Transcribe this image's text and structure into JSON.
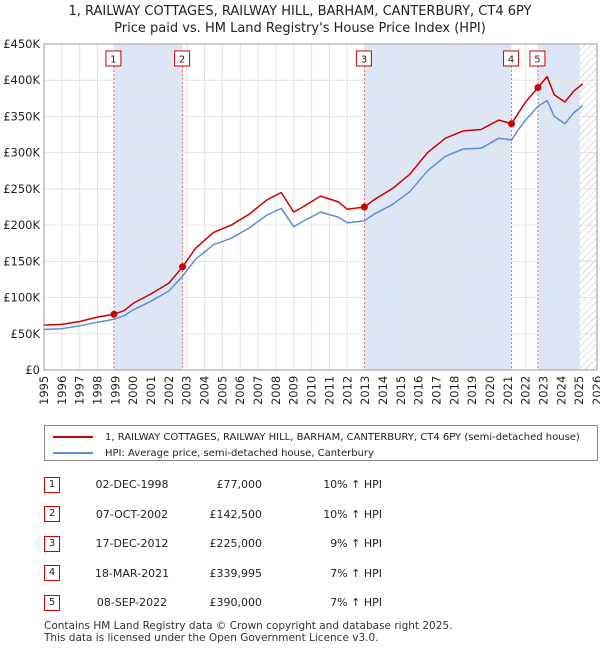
{
  "title_line1": "1, RAILWAY COTTAGES, RAILWAY HILL, BARHAM, CANTERBURY, CT4 6PY",
  "title_line2": "Price paid vs. HM Land Registry's House Price Index (HPI)",
  "colors": {
    "price_line": "#cc0000",
    "hpi_line": "#5b8fd4",
    "highlight": "#dde6f5",
    "grid": "#e3e3e3",
    "marker_dash": "#e07070"
  },
  "legend": {
    "price_label": "1, RAILWAY COTTAGES, RAILWAY HILL, BARHAM, CANTERBURY, CT4 6PY (semi-detached house)",
    "hpi_label": "HPI: Average price, semi-detached house, Canterbury"
  },
  "sales": [
    {
      "num": "1",
      "date": "02-DEC-1998",
      "price": "£77,000",
      "hpi": "10% ↑ HPI"
    },
    {
      "num": "2",
      "date": "07-OCT-2002",
      "price": "£142,500",
      "hpi": "10% ↑ HPI"
    },
    {
      "num": "3",
      "date": "17-DEC-2012",
      "price": "£225,000",
      "hpi": "9% ↑ HPI"
    },
    {
      "num": "4",
      "date": "18-MAR-2021",
      "price": "£339,995",
      "hpi": "7% ↑ HPI"
    },
    {
      "num": "5",
      "date": "08-SEP-2022",
      "price": "£390,000",
      "hpi": "7% ↑ HPI"
    }
  ],
  "footer_line1": "Contains HM Land Registry data © Crown copyright and database right 2025.",
  "footer_line2": "This data is licensed under the Open Government Licence v3.0.",
  "chart_data": {
    "type": "line",
    "x_range": [
      1995,
      2026
    ],
    "ylim": [
      0,
      450000
    ],
    "y_ticks": [
      0,
      50000,
      100000,
      150000,
      200000,
      250000,
      300000,
      350000,
      400000,
      450000
    ],
    "y_tick_labels": [
      "£0",
      "£50K",
      "£100K",
      "£150K",
      "£200K",
      "£250K",
      "£300K",
      "£350K",
      "£400K",
      "£450K"
    ],
    "x_ticks": [
      "1995",
      "1996",
      "1997",
      "1998",
      "1999",
      "2000",
      "2001",
      "2002",
      "2003",
      "2004",
      "2005",
      "2006",
      "2007",
      "2008",
      "2009",
      "2010",
      "2011",
      "2012",
      "2013",
      "2014",
      "2015",
      "2016",
      "2017",
      "2018",
      "2019",
      "2020",
      "2021",
      "2022",
      "2023",
      "2024",
      "2025",
      "2026"
    ],
    "future_hatch_from": 2025.0,
    "grid": true,
    "series": [
      {
        "name": "1, RAILWAY COTTAGES, RAILWAY HILL, BARHAM, CANTERBURY, CT4 6PY (semi-detached house)",
        "points": [
          [
            1995.0,
            62000
          ],
          [
            1996.0,
            63000
          ],
          [
            1997.0,
            67000
          ],
          [
            1998.0,
            73000
          ],
          [
            1998.92,
            77000
          ],
          [
            1999.5,
            82000
          ],
          [
            2000.0,
            92000
          ],
          [
            2001.0,
            105000
          ],
          [
            2002.0,
            120000
          ],
          [
            2002.77,
            142500
          ],
          [
            2003.5,
            168000
          ],
          [
            2004.5,
            190000
          ],
          [
            2005.5,
            200000
          ],
          [
            2006.5,
            215000
          ],
          [
            2007.5,
            235000
          ],
          [
            2008.3,
            245000
          ],
          [
            2009.0,
            218000
          ],
          [
            2009.5,
            225000
          ],
          [
            2010.5,
            240000
          ],
          [
            2011.5,
            232000
          ],
          [
            2012.0,
            222000
          ],
          [
            2012.96,
            225000
          ],
          [
            2013.5,
            235000
          ],
          [
            2014.5,
            250000
          ],
          [
            2015.5,
            270000
          ],
          [
            2016.5,
            300000
          ],
          [
            2017.5,
            320000
          ],
          [
            2018.5,
            330000
          ],
          [
            2019.5,
            332000
          ],
          [
            2020.5,
            345000
          ],
          [
            2021.21,
            339995
          ],
          [
            2021.6,
            355000
          ],
          [
            2022.0,
            370000
          ],
          [
            2022.69,
            390000
          ],
          [
            2023.2,
            405000
          ],
          [
            2023.6,
            380000
          ],
          [
            2024.2,
            370000
          ],
          [
            2024.7,
            385000
          ],
          [
            2025.2,
            395000
          ]
        ]
      },
      {
        "name": "HPI: Average price, semi-detached house, Canterbury",
        "points": [
          [
            1995.0,
            56000
          ],
          [
            1996.0,
            57000
          ],
          [
            1997.0,
            61000
          ],
          [
            1998.0,
            66000
          ],
          [
            1998.92,
            70000
          ],
          [
            1999.5,
            75000
          ],
          [
            2000.0,
            83000
          ],
          [
            2001.0,
            95000
          ],
          [
            2002.0,
            109000
          ],
          [
            2002.77,
            129500
          ],
          [
            2003.5,
            153000
          ],
          [
            2004.5,
            173000
          ],
          [
            2005.5,
            182000
          ],
          [
            2006.5,
            196000
          ],
          [
            2007.5,
            214000
          ],
          [
            2008.3,
            223000
          ],
          [
            2009.0,
            198000
          ],
          [
            2009.5,
            205000
          ],
          [
            2010.5,
            218000
          ],
          [
            2011.5,
            211000
          ],
          [
            2012.0,
            203000
          ],
          [
            2012.96,
            206000
          ],
          [
            2013.5,
            215000
          ],
          [
            2014.5,
            228000
          ],
          [
            2015.5,
            246000
          ],
          [
            2016.5,
            275000
          ],
          [
            2017.5,
            295000
          ],
          [
            2018.5,
            305000
          ],
          [
            2019.5,
            306000
          ],
          [
            2020.5,
            320000
          ],
          [
            2021.21,
            317500
          ],
          [
            2021.6,
            332000
          ],
          [
            2022.0,
            345000
          ],
          [
            2022.69,
            364000
          ],
          [
            2023.2,
            372000
          ],
          [
            2023.6,
            350000
          ],
          [
            2024.2,
            340000
          ],
          [
            2024.7,
            355000
          ],
          [
            2025.2,
            365000
          ]
        ]
      }
    ],
    "sale_markers": [
      {
        "label": "1",
        "x": 1998.92,
        "y": 77000
      },
      {
        "label": "2",
        "x": 2002.77,
        "y": 142500
      },
      {
        "label": "3",
        "x": 2012.96,
        "y": 225000
      },
      {
        "label": "4",
        "x": 2021.21,
        "y": 339995
      },
      {
        "label": "5",
        "x": 2022.69,
        "y": 390000
      }
    ]
  }
}
